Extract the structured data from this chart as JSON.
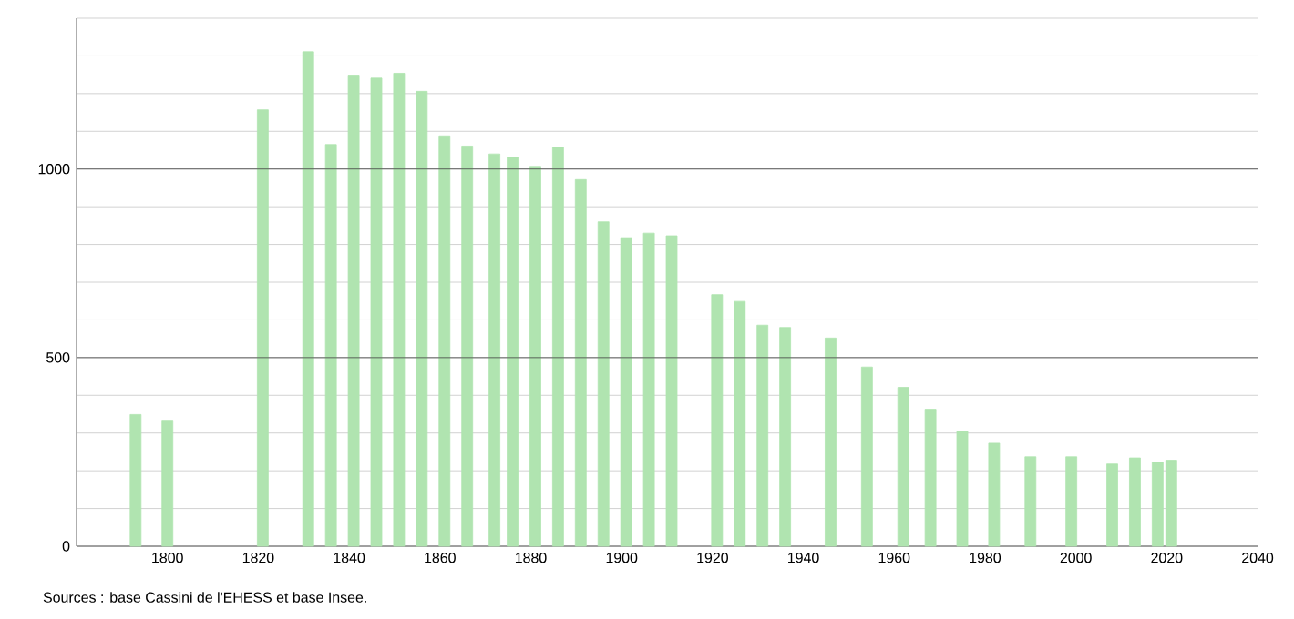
{
  "chart_data": {
    "type": "bar",
    "x": [
      1793,
      1800,
      1821,
      1831,
      1836,
      1841,
      1846,
      1851,
      1856,
      1861,
      1866,
      1872,
      1876,
      1881,
      1886,
      1891,
      1896,
      1901,
      1906,
      1911,
      1921,
      1926,
      1931,
      1936,
      1946,
      1954,
      1962,
      1968,
      1975,
      1982,
      1990,
      1999,
      2008,
      2013,
      2018,
      2021
    ],
    "values": [
      349,
      334,
      1157,
      1311,
      1065,
      1249,
      1241,
      1254,
      1206,
      1088,
      1061,
      1040,
      1031,
      1007,
      1057,
      972,
      860,
      818,
      830,
      823,
      667,
      649,
      586,
      580,
      552,
      475,
      421,
      363,
      305,
      273,
      237,
      237,
      218,
      234,
      223,
      228
    ],
    "color": "#b0e4b0",
    "xlim": [
      1780,
      2040
    ],
    "xticks": [
      1800,
      1820,
      1840,
      1860,
      1880,
      1900,
      1920,
      1940,
      1960,
      1980,
      2000,
      2020,
      2040
    ],
    "ylim": [
      0,
      1400
    ],
    "yticks": [
      0,
      {
        "value": 100,
        "label": null
      },
      {
        "value": 200,
        "label": null
      },
      {
        "value": 300,
        "label": null
      },
      {
        "value": 400,
        "label": null
      },
      500,
      {
        "value": 600,
        "label": null
      },
      {
        "value": 700,
        "label": null
      },
      {
        "value": 800,
        "label": null
      },
      {
        "value": 900,
        "label": null
      },
      1000,
      {
        "value": 1100,
        "label": null
      },
      {
        "value": 1200,
        "label": null
      },
      {
        "value": 1300,
        "label": null
      },
      {
        "value": 1400,
        "label": null
      }
    ],
    "grid": "y",
    "annotations": [
      "Sources : base Cassini de l'EHESS et base Insee."
    ]
  }
}
